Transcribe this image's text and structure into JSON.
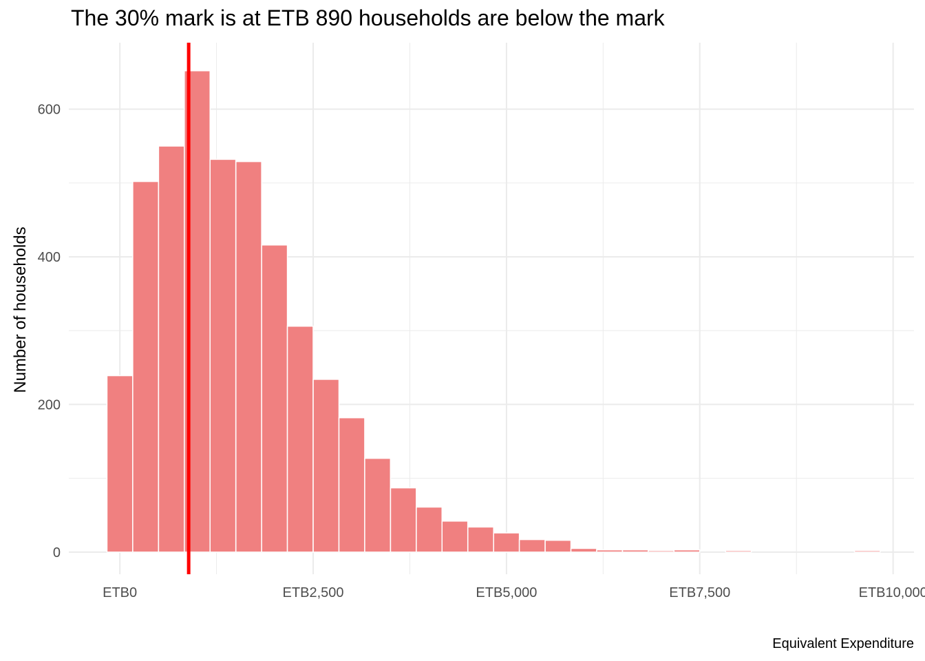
{
  "chart_data": {
    "type": "bar",
    "subtype": "histogram",
    "title": "The 30% mark is at ETB 890 households are below the mark",
    "xlabel": "Equivalent Expenditure",
    "ylabel": "Number of households",
    "bin_width": 333,
    "bins": [
      {
        "x": 0,
        "count": 239
      },
      {
        "x": 333,
        "count": 502
      },
      {
        "x": 667,
        "count": 550
      },
      {
        "x": 1000,
        "count": 652
      },
      {
        "x": 1333,
        "count": 532
      },
      {
        "x": 1667,
        "count": 529
      },
      {
        "x": 2000,
        "count": 416
      },
      {
        "x": 2333,
        "count": 306
      },
      {
        "x": 2667,
        "count": 234
      },
      {
        "x": 3000,
        "count": 182
      },
      {
        "x": 3333,
        "count": 127
      },
      {
        "x": 3667,
        "count": 87
      },
      {
        "x": 4000,
        "count": 61
      },
      {
        "x": 4333,
        "count": 42
      },
      {
        "x": 4667,
        "count": 34
      },
      {
        "x": 5000,
        "count": 26
      },
      {
        "x": 5333,
        "count": 17
      },
      {
        "x": 5667,
        "count": 16
      },
      {
        "x": 6000,
        "count": 5
      },
      {
        "x": 6333,
        "count": 3
      },
      {
        "x": 6667,
        "count": 3
      },
      {
        "x": 7000,
        "count": 2
      },
      {
        "x": 7333,
        "count": 3
      },
      {
        "x": 8000,
        "count": 2
      },
      {
        "x": 9667,
        "count": 2
      }
    ],
    "reference_line": {
      "x": 890,
      "color": "#ff0000"
    },
    "xlim": [
      -660,
      10270
    ],
    "ylim": [
      -30,
      690
    ],
    "x_ticks": [
      {
        "value": 0,
        "label": "ETB0"
      },
      {
        "value": 2500,
        "label": "ETB2,500"
      },
      {
        "value": 5000,
        "label": "ETB5,000"
      },
      {
        "value": 7500,
        "label": "ETB7,500"
      },
      {
        "value": 10000,
        "label": "ETB10,000"
      }
    ],
    "y_ticks": [
      {
        "value": 0,
        "label": "0"
      },
      {
        "value": 200,
        "label": "200"
      },
      {
        "value": 400,
        "label": "400"
      },
      {
        "value": 600,
        "label": "600"
      }
    ],
    "grid": true,
    "legend": "none",
    "colors": {
      "bar_fill": "#f08080",
      "bar_stroke": "#ffffff",
      "grid": "#ebebeb",
      "mark_line": "#ff0000"
    }
  }
}
